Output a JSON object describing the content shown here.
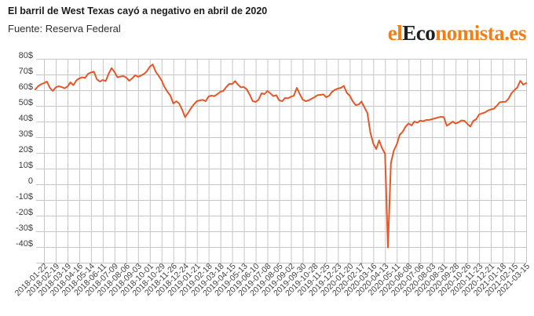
{
  "header": {
    "title": "El barril de West Texas cayó a negativo en abril de 2020",
    "source": "Fuente: Reserva Federal"
  },
  "logo": {
    "prefix": "el",
    "mid": "Eco",
    "suffix": "nomista.es"
  },
  "colors": {
    "line": "#e65727",
    "grid": "#c6c6c6",
    "axis_text": "#3d3d3d",
    "logo_orange": "#f17f16",
    "logo_dark": "#1f1f1f",
    "background": "#ffffff"
  },
  "chart_data": {
    "type": "line",
    "title": "El barril de West Texas cayó a negativo en abril de 2020",
    "source": "Fuente: Reserva Federal",
    "unit": "$ por barril",
    "grid": true,
    "legend": "none",
    "ylim": [
      -50,
      80
    ],
    "y_tick_values": [
      80,
      70,
      60,
      50,
      40,
      30,
      20,
      10,
      0,
      -10,
      -20,
      -30,
      -40
    ],
    "y_tick_labels": [
      "80$",
      "70$",
      "60$",
      "50$",
      "40$",
      "30$",
      "20$",
      "10$",
      "0",
      "-10$",
      "-20$",
      "-30$",
      "-40$"
    ],
    "x_tick_labels": [
      "2018-01-22",
      "2018-02-19",
      "2018-03-19",
      "2018-04-16",
      "2018-05-14",
      "2018-06-11",
      "2018-07-09",
      "2018-08-06",
      "2018-09-03",
      "2018-10-01",
      "2018-10-29",
      "2018-11-26",
      "2018-12-24",
      "2019-01-21",
      "2019-02-18",
      "2019-03-18",
      "2019-04-15",
      "2019-05-13",
      "2019-06-10",
      "2019-07-08",
      "2019-08-05",
      "2019-09-02",
      "2019-09-30",
      "2019-10-28",
      "2019-11-25",
      "2019-12-23",
      "2020-01-20",
      "2020-02-17",
      "2020-03-16",
      "2020-04-13",
      "2020-05-11",
      "2020-06-08",
      "2020-07-06",
      "2020-08-03",
      "2020-08-31",
      "2020-09-28",
      "2020-10-26",
      "2020-11-23",
      "2020-12-21",
      "2021-01-18",
      "2021-02-15",
      "2021-03-15"
    ],
    "frequency": "weekly",
    "points_per_tick": 4,
    "lead_in_points": 3,
    "values": [
      60.4,
      62.5,
      63.8,
      64.5,
      65.5,
      61.5,
      59.5,
      61.8,
      62.5,
      62.0,
      61.2,
      62.3,
      65.0,
      63.2,
      66.2,
      67.5,
      68.2,
      67.8,
      70.5,
      71.3,
      71.8,
      66.9,
      65.5,
      66.5,
      65.8,
      70.5,
      74.1,
      71.5,
      68.2,
      68.7,
      69.0,
      68.0,
      66.0,
      67.5,
      69.5,
      68.5,
      69.3,
      70.3,
      72.1,
      75.0,
      76.4,
      71.8,
      69.2,
      66.2,
      62.0,
      59.0,
      56.5,
      51.5,
      52.9,
      51.5,
      47.5,
      42.8,
      45.5,
      48.5,
      51.0,
      53.0,
      53.5,
      53.8,
      53.0,
      56.0,
      56.5,
      56.2,
      57.5,
      59.0,
      59.5,
      62.0,
      64.0,
      63.9,
      65.8,
      63.5,
      61.8,
      62.0,
      60.5,
      57.0,
      53.0,
      52.5,
      54.0,
      58.0,
      57.5,
      59.5,
      58.0,
      56.2,
      56.8,
      53.5,
      53.0,
      55.0,
      54.8,
      55.8,
      56.5,
      61.5,
      57.5,
      54.0,
      53.0,
      53.5,
      54.5,
      55.5,
      56.8,
      57.0,
      57.3,
      55.5,
      56.5,
      59.0,
      60.3,
      61.0,
      61.5,
      62.7,
      58.3,
      56.5,
      53.0,
      50.5,
      50.8,
      52.8,
      49.0,
      45.5,
      33.0,
      26.0,
      22.5,
      28.0,
      23.0,
      19.5,
      -40.3,
      13.5,
      21.5,
      25.5,
      31.5,
      33.5,
      36.8,
      38.8,
      37.5,
      40.0,
      39.3,
      40.6,
      40.2,
      41.0,
      41.0,
      41.5,
      42.0,
      42.6,
      43.0,
      42.8,
      37.3,
      38.5,
      40.0,
      38.7,
      39.5,
      40.7,
      40.5,
      38.5,
      36.8,
      40.3,
      41.5,
      44.5,
      45.2,
      45.8,
      47.0,
      47.7,
      48.2,
      50.0,
      52.3,
      52.5,
      52.6,
      54.5,
      58.0,
      60.0,
      61.7,
      66.0,
      63.5,
      64.5
    ]
  }
}
